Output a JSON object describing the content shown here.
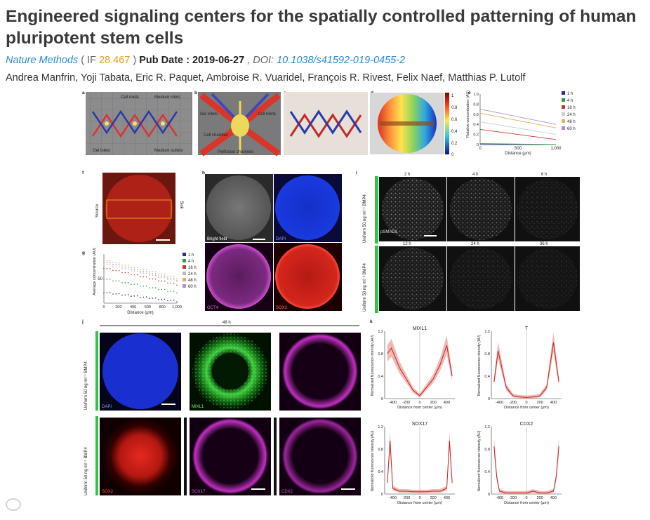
{
  "article": {
    "title": "Engineered signaling centers for the spatially controlled patterning of human pluripotent stem cells",
    "journal": "Nature Methods",
    "if_prefix": "( IF",
    "if_value": "28.467",
    "if_suffix": ")",
    "pub_date_label": "Pub Date : 2019-06-27",
    "doi_label": ", DOI:",
    "doi": "10.1038/s41592-019-0455-2",
    "authors": "Andrea Manfrin, Yoji Tabata, Eric R. Paquet, Ambroise R. Vuaridel, François R. Rivest, Felix Naef, Matthias P. Lutolf"
  },
  "figure": {
    "panel_letters": [
      "a",
      "b",
      "c",
      "d",
      "e",
      "f",
      "g",
      "h",
      "i",
      "j",
      "k"
    ],
    "a": {
      "labels": [
        "Cell inlets",
        "Medium inlets",
        "Gel inlets",
        "Medium outlets"
      ]
    },
    "b": {
      "labels": [
        "Gel inlets",
        "Cell inlets",
        "Cell chamber",
        "Perfusion channels"
      ]
    },
    "d": {
      "colorbar_ticks": [
        "1",
        "0.8",
        "0.6",
        "0.4",
        "0.2",
        "0"
      ]
    },
    "f": {
      "labels": [
        "Source",
        "Sink"
      ]
    },
    "h": {
      "labels": [
        "Bright field",
        "DAPI",
        "OCT4",
        "SOX2"
      ]
    },
    "i": {
      "row_labels": [
        "Uniform 50 ng ml⁻¹ BMP4",
        "Uniform 50 ng ml⁻¹ BMP4"
      ],
      "times_top": [
        "2 h",
        "4 h",
        "6 h"
      ],
      "times_bottom": [
        "12 h",
        "24 h",
        "36 h"
      ],
      "marker": "pSMAD1"
    },
    "j": {
      "time": "48 h",
      "row_labels": [
        "Uniform 50 ng ml⁻¹ BMP4",
        "Uniform 50 ng ml⁻¹ BMP4"
      ],
      "labels_top": [
        "DAPI",
        "MIXL1"
      ],
      "labels_bottom": [
        "SOX2",
        "SOX17",
        "CDX2"
      ]
    }
  },
  "chart_data": [
    {
      "panel": "e",
      "type": "line",
      "xlabel": "Distance (μm)",
      "ylabel": "Relative concentration (AU)",
      "xlim": [
        0,
        1000
      ],
      "ylim": [
        0,
        1
      ],
      "xticks": [
        "0",
        "500",
        "1,000"
      ],
      "yticks": [
        "0",
        "0.2",
        "0.4",
        "0.6",
        "0.8",
        "1.0"
      ],
      "legend_position": "right",
      "series": [
        {
          "name": "1 h",
          "color": "#2d2d8f",
          "x": [
            0,
            1000
          ],
          "y": [
            0.0,
            0.0
          ]
        },
        {
          "name": "4 h",
          "color": "#3f9a3f",
          "x": [
            0,
            1000
          ],
          "y": [
            0.02,
            0.0
          ]
        },
        {
          "name": "16 h",
          "color": "#c0392b",
          "x": [
            0,
            1000
          ],
          "y": [
            0.3,
            0.1
          ]
        },
        {
          "name": "24 h",
          "color": "#cfcfcf",
          "x": [
            0,
            1000
          ],
          "y": [
            0.45,
            0.2
          ]
        },
        {
          "name": "48 h",
          "color": "#e0b060",
          "x": [
            0,
            1000
          ],
          "y": [
            0.62,
            0.33
          ]
        },
        {
          "name": "60 h",
          "color": "#b090c8",
          "x": [
            0,
            1000
          ],
          "y": [
            0.7,
            0.4
          ]
        }
      ]
    },
    {
      "panel": "g",
      "type": "scatter",
      "xlabel": "Distance (μm)",
      "ylabel": "Average concentration (AU)",
      "xlim": [
        0,
        1000
      ],
      "ylim": [
        0,
        100
      ],
      "xticks": [
        "0",
        "200",
        "400",
        "600",
        "800",
        "1,000"
      ],
      "yticks": [
        "50"
      ],
      "legend_position": "right",
      "series": [
        {
          "name": "1 h",
          "color": "#2d2d8f",
          "x": [
            0,
            1000
          ],
          "y": [
            22,
            4
          ]
        },
        {
          "name": "4 h",
          "color": "#3f9a3f",
          "x": [
            0,
            1000
          ],
          "y": [
            50,
            22
          ]
        },
        {
          "name": "16 h",
          "color": "#c0392b",
          "x": [
            0,
            1000
          ],
          "y": [
            72,
            38
          ]
        },
        {
          "name": "24 h",
          "color": "#bbbbbb",
          "x": [
            0,
            1000
          ],
          "y": [
            80,
            45
          ]
        },
        {
          "name": "48 h",
          "color": "#e0b060",
          "x": [
            0,
            1000
          ],
          "y": [
            88,
            52
          ]
        },
        {
          "name": "60 h",
          "color": "#b090c8",
          "x": [
            0,
            1000
          ],
          "y": [
            84,
            48
          ]
        }
      ]
    },
    {
      "panel": "k",
      "type": "line",
      "xlabel": "Distance from center (μm)",
      "ylabel": "Normalized fluorescence intensity (AU)",
      "xticks": [
        "-400",
        "-200",
        "0",
        "200",
        "400"
      ],
      "yticks": [
        "0",
        "0.4",
        "0.8",
        "1.2"
      ],
      "subplots": [
        {
          "title": "MIXL1",
          "x": [
            -480,
            -420,
            -300,
            -200,
            -100,
            0,
            100,
            200,
            300,
            400,
            480
          ],
          "y": [
            0.8,
            0.9,
            0.55,
            0.35,
            0.15,
            0.05,
            0.2,
            0.35,
            0.6,
            0.95,
            0.4
          ]
        },
        {
          "title": "T",
          "x": [
            -480,
            -420,
            -300,
            -200,
            -100,
            0,
            100,
            200,
            300,
            400,
            480
          ],
          "y": [
            0.3,
            0.85,
            0.2,
            0.05,
            0.03,
            0.02,
            0.03,
            0.05,
            0.2,
            1.0,
            0.3
          ]
        },
        {
          "title": "SOX17",
          "x": [
            -480,
            -440,
            -400,
            -300,
            -200,
            -100,
            0,
            100,
            200,
            300,
            400,
            440,
            480
          ],
          "y": [
            0.2,
            0.95,
            0.1,
            0.05,
            0.05,
            0.04,
            0.04,
            0.04,
            0.05,
            0.05,
            0.1,
            0.95,
            0.2
          ]
        },
        {
          "title": "CDX2",
          "x": [
            -480,
            -440,
            -400,
            -300,
            -200,
            -100,
            0,
            100,
            200,
            300,
            400,
            440,
            480
          ],
          "y": [
            0.85,
            0.3,
            0.05,
            0.02,
            0.02,
            0.02,
            0.02,
            0.05,
            0.02,
            0.02,
            0.05,
            0.3,
            0.85
          ]
        }
      ]
    }
  ]
}
